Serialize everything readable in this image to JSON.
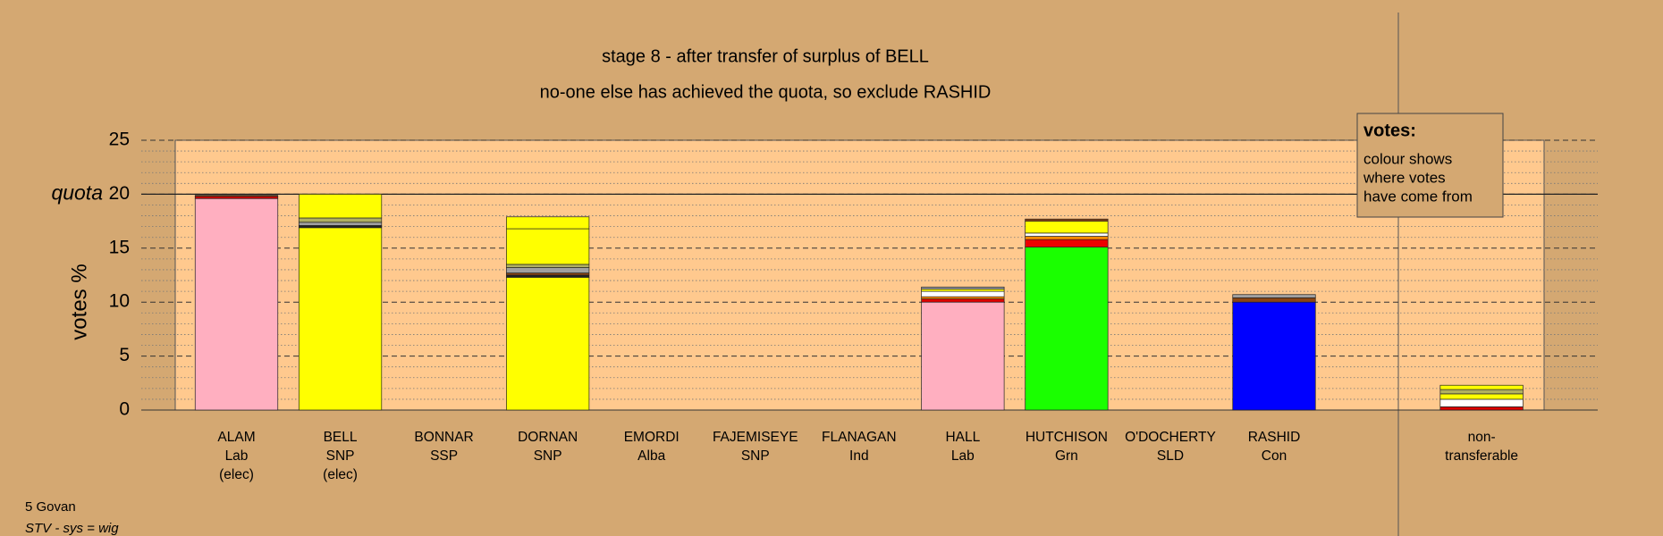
{
  "chart_data": {
    "type": "stacked-bar",
    "title": "stage 8 - after transfer of surplus of BELL",
    "subtitle": "no-one else has achieved the quota, so exclude RASHID",
    "y_label": "votes %",
    "quota": 20,
    "quota_label": "quota",
    "ylim": [
      0,
      25
    ],
    "yticks": [
      0,
      5,
      10,
      15,
      20,
      25
    ],
    "minor_yticks": [
      1,
      2,
      3,
      4,
      6,
      7,
      8,
      9,
      11,
      12,
      13,
      14,
      16,
      17,
      18,
      19,
      21,
      22,
      23,
      24
    ],
    "grid": true,
    "categories": [
      {
        "label": [
          "ALAM",
          "Lab",
          "(elec)"
        ],
        "segments": [
          {
            "color": "#ffafc0",
            "value": 19.6
          },
          {
            "color": "#dd0000",
            "value": 0.2
          },
          {
            "color": "#8b4513",
            "value": 0.1
          }
        ]
      },
      {
        "label": [
          "BELL",
          "SNP",
          "(elec)"
        ],
        "segments": [
          {
            "color": "#ffff00",
            "value": 16.9
          },
          {
            "color": "#222222",
            "value": 0.2
          },
          {
            "color": "#a0a0a0",
            "value": 0.3
          },
          {
            "color": "#b0b060",
            "value": 0.4
          },
          {
            "color": "#ffff00",
            "value": 2.2
          }
        ]
      },
      {
        "label": [
          "BONNAR",
          "SSP"
        ],
        "segments": []
      },
      {
        "label": [
          "DORNAN",
          "SNP"
        ],
        "segments": [
          {
            "color": "#ffff00",
            "value": 12.3
          },
          {
            "color": "#222222",
            "value": 0.2
          },
          {
            "color": "#8b4513",
            "value": 0.2
          },
          {
            "color": "#a0a0a0",
            "value": 0.5
          },
          {
            "color": "#b0b060",
            "value": 0.3
          },
          {
            "color": "#ffff00",
            "value": 3.3
          },
          {
            "color": "#ffff00",
            "value": 1.1
          }
        ]
      },
      {
        "label": [
          "EMORDI",
          "Alba"
        ],
        "segments": []
      },
      {
        "label": [
          "FAJEMISEYE",
          "SNP"
        ],
        "segments": []
      },
      {
        "label": [
          "FLANAGAN",
          "Ind"
        ],
        "segments": []
      },
      {
        "label": [
          "HALL",
          "Lab"
        ],
        "segments": [
          {
            "color": "#ffafc0",
            "value": 10.0
          },
          {
            "color": "#dd0000",
            "value": 0.3
          },
          {
            "color": "#ff8c00",
            "value": 0.2
          },
          {
            "color": "#ffffff",
            "value": 0.5
          },
          {
            "color": "#ffff00",
            "value": 0.2
          },
          {
            "color": "#a0a0a0",
            "value": 0.2
          }
        ]
      },
      {
        "label": [
          "HUTCHISON",
          "Grn"
        ],
        "segments": [
          {
            "color": "#1aff00",
            "value": 15.1
          },
          {
            "color": "#ee0000",
            "value": 0.7
          },
          {
            "color": "#ff8c00",
            "value": 0.3
          },
          {
            "color": "#ffffff",
            "value": 0.3
          },
          {
            "color": "#ffff00",
            "value": 1.1
          },
          {
            "color": "#8b4513",
            "value": 0.2
          }
        ]
      },
      {
        "label": [
          "O'DOCHERTY",
          "SLD"
        ],
        "segments": []
      },
      {
        "label": [
          "RASHID",
          "Con"
        ],
        "segments": [
          {
            "color": "#0000ff",
            "value": 10.0
          },
          {
            "color": "#8b4513",
            "value": 0.4
          },
          {
            "color": "#a0a0a0",
            "value": 0.3
          }
        ]
      },
      {
        "label": [
          "non-",
          "transferable"
        ],
        "segments": [
          {
            "color": "#dd0000",
            "value": 0.3
          },
          {
            "color": "#ffffff",
            "value": 0.7
          },
          {
            "color": "#ffff00",
            "value": 0.5
          },
          {
            "color": "#b0b060",
            "value": 0.4
          },
          {
            "color": "#ffff00",
            "value": 0.4
          }
        ]
      }
    ],
    "legend": {
      "title": "votes:",
      "lines": [
        "colour shows",
        "where votes",
        "have come from"
      ]
    },
    "footer": [
      "5 Govan",
      "STV - sys = wig"
    ]
  }
}
